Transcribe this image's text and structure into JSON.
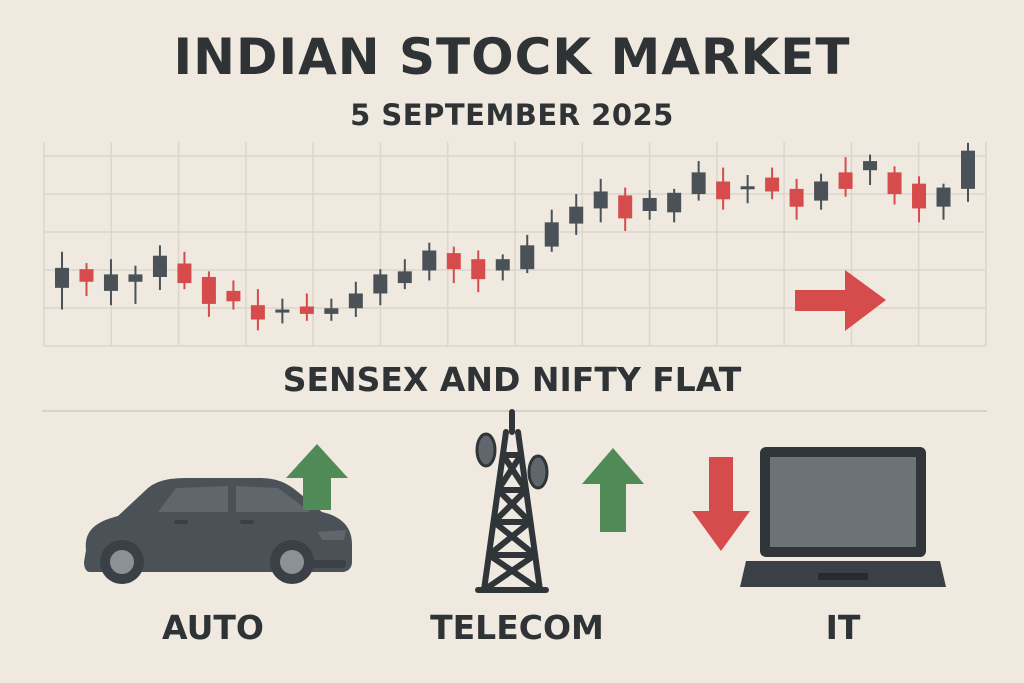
{
  "header": {
    "title": "INDIAN STOCK MARKET",
    "subtitle": "5 SEPTEMBER 2025"
  },
  "caption": "SENSEX AND NIFTY FLAT",
  "colors": {
    "background": "#efe9df",
    "bullish": "#4a5258",
    "bearish": "#d64b4b",
    "up_arrow": "#4f8a57",
    "down_arrow": "#d64b4b",
    "grid": "#dcd6cc",
    "icon": "#4a5258"
  },
  "chart_data": {
    "type": "candlestick",
    "grid": true,
    "trend_arrow": "right",
    "candles": [
      {
        "o": 28.4,
        "c": 33.0,
        "h": 36.7,
        "l": 23.4
      },
      {
        "o": 32.7,
        "c": 29.8,
        "h": 34.1,
        "l": 26.5
      },
      {
        "o": 27.7,
        "c": 31.5,
        "h": 35.0,
        "l": 24.4
      },
      {
        "o": 29.8,
        "c": 31.5,
        "h": 33.5,
        "l": 24.7
      },
      {
        "o": 30.9,
        "c": 35.8,
        "h": 38.2,
        "l": 27.9
      },
      {
        "o": 34.0,
        "c": 29.5,
        "h": 36.7,
        "l": 28.1
      },
      {
        "o": 30.9,
        "c": 24.7,
        "h": 32.2,
        "l": 21.7
      },
      {
        "o": 27.7,
        "c": 25.3,
        "h": 30.1,
        "l": 23.4
      },
      {
        "o": 24.4,
        "c": 21.1,
        "h": 28.1,
        "l": 18.6
      },
      {
        "o": 22.7,
        "c": 23.4,
        "h": 25.9,
        "l": 20.2
      },
      {
        "o": 24.1,
        "c": 22.4,
        "h": 27.1,
        "l": 20.8
      },
      {
        "o": 22.4,
        "c": 23.7,
        "h": 25.9,
        "l": 20.8
      },
      {
        "o": 23.7,
        "c": 27.1,
        "h": 29.8,
        "l": 21.7
      },
      {
        "o": 27.1,
        "c": 31.5,
        "h": 32.7,
        "l": 24.4
      },
      {
        "o": 29.5,
        "c": 32.2,
        "h": 35.0,
        "l": 28.1
      },
      {
        "o": 32.4,
        "c": 37.0,
        "h": 38.8,
        "l": 30.1
      },
      {
        "o": 36.4,
        "c": 32.7,
        "h": 37.9,
        "l": 29.5
      },
      {
        "o": 35.0,
        "c": 30.4,
        "h": 37.0,
        "l": 27.4
      },
      {
        "o": 32.4,
        "c": 35.0,
        "h": 36.1,
        "l": 30.1
      },
      {
        "o": 32.7,
        "c": 38.2,
        "h": 40.6,
        "l": 31.8
      },
      {
        "o": 37.9,
        "c": 43.5,
        "h": 46.4,
        "l": 36.7
      },
      {
        "o": 43.2,
        "c": 47.1,
        "h": 50.0,
        "l": 40.6
      },
      {
        "o": 46.7,
        "c": 50.6,
        "h": 53.5,
        "l": 43.5
      },
      {
        "o": 49.7,
        "c": 44.4,
        "h": 51.5,
        "l": 41.5
      },
      {
        "o": 46.1,
        "c": 49.1,
        "h": 50.9,
        "l": 44.1
      },
      {
        "o": 45.8,
        "c": 50.3,
        "h": 51.2,
        "l": 43.5
      },
      {
        "o": 50.0,
        "c": 55.0,
        "h": 57.6,
        "l": 48.5
      },
      {
        "o": 52.9,
        "c": 48.8,
        "h": 56.1,
        "l": 46.4
      },
      {
        "o": 51.5,
        "c": 51.8,
        "h": 54.4,
        "l": 47.9
      },
      {
        "o": 53.8,
        "c": 50.6,
        "h": 56.1,
        "l": 48.8
      },
      {
        "o": 51.2,
        "c": 47.1,
        "h": 53.5,
        "l": 44.1
      },
      {
        "o": 48.5,
        "c": 52.9,
        "h": 54.7,
        "l": 46.4
      },
      {
        "o": 55.0,
        "c": 51.2,
        "h": 58.5,
        "l": 49.4
      },
      {
        "o": 55.5,
        "c": 57.6,
        "h": 59.1,
        "l": 52.1
      },
      {
        "o": 55.0,
        "c": 50.0,
        "h": 56.4,
        "l": 47.6
      },
      {
        "o": 52.4,
        "c": 46.7,
        "h": 54.1,
        "l": 43.5
      },
      {
        "o": 47.1,
        "c": 51.5,
        "h": 52.4,
        "l": 44.1
      },
      {
        "o": 51.2,
        "c": 60.0,
        "h": 61.8,
        "l": 48.2
      }
    ],
    "ylim": [
      15,
      62
    ],
    "x_grid_count": 14,
    "y_grid_count": 5
  },
  "sectors": [
    {
      "label": "AUTO",
      "icon": "car-icon",
      "trend": "up"
    },
    {
      "label": "TELECOM",
      "icon": "tower-icon",
      "trend": "up"
    },
    {
      "label": "IT",
      "icon": "laptop-icon",
      "trend": "down"
    }
  ]
}
